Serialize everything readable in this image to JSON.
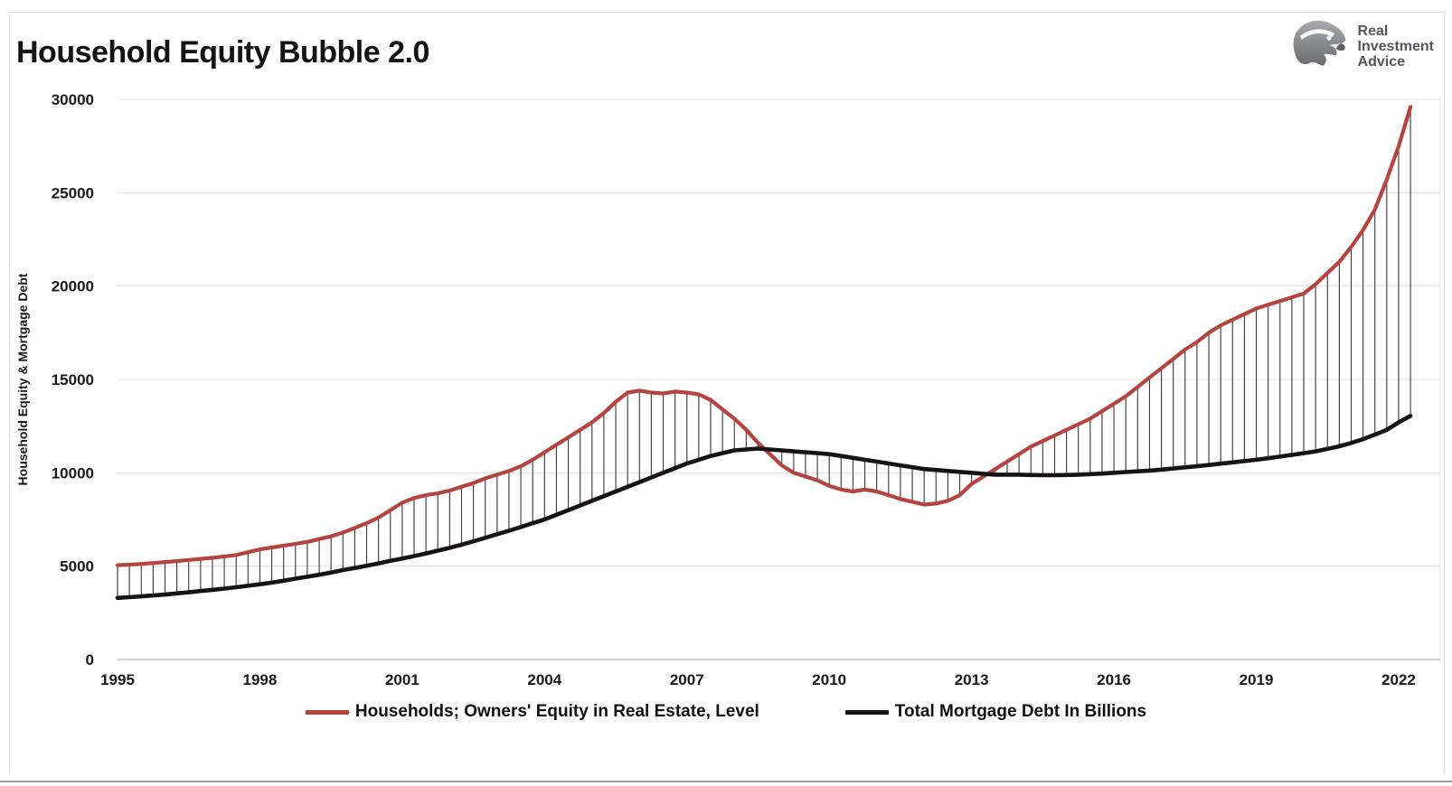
{
  "header": {
    "title": "Household Equity Bubble 2.0"
  },
  "logo": {
    "line1": "Real",
    "line2": "Investment",
    "line3": "Advice"
  },
  "chart_data": {
    "type": "line",
    "title": "Household Equity Bubble 2.0",
    "xlabel": "",
    "ylabel": "Household Equity & Mortgage Debt",
    "ylim": [
      0,
      30000
    ],
    "y_ticks": [
      0,
      5000,
      10000,
      15000,
      20000,
      25000,
      30000
    ],
    "x_ticks": [
      1995,
      1998,
      2001,
      2004,
      2007,
      2010,
      2013,
      2016,
      2019,
      2022
    ],
    "x_period": "quarterly",
    "x_range": [
      "1995Q1",
      "2022Q2"
    ],
    "grid": "horizontal-light",
    "legend_position": "bottom-center",
    "connector_style": "vertical high-low line at every quarter between the two series",
    "colors": {
      "equity_line": "#b54441",
      "mortgage_line": "#141414",
      "highlow_line": "#4a3b3b",
      "gridline": "#e5e5e5",
      "baseline": "#c2c2c2"
    },
    "series": [
      {
        "name": "Households; Owners' Equity in Real Estate, Level",
        "color": "#b54441",
        "values": [
          5050,
          5080,
          5120,
          5170,
          5220,
          5270,
          5330,
          5390,
          5450,
          5520,
          5600,
          5750,
          5900,
          6000,
          6100,
          6200,
          6300,
          6450,
          6600,
          6800,
          7050,
          7300,
          7600,
          8000,
          8400,
          8650,
          8800,
          8900,
          9050,
          9250,
          9450,
          9700,
          9900,
          10100,
          10350,
          10700,
          11100,
          11500,
          11900,
          12300,
          12700,
          13200,
          13800,
          14300,
          14400,
          14300,
          14250,
          14350,
          14300,
          14200,
          13900,
          13400,
          12900,
          12300,
          11600,
          11000,
          10400,
          10000,
          9800,
          9600,
          9300,
          9100,
          9000,
          9100,
          9000,
          8800,
          8600,
          8450,
          8300,
          8350,
          8500,
          8800,
          9400,
          9800,
          10200,
          10600,
          11000,
          11400,
          11700,
          12000,
          12300,
          12600,
          12900,
          13300,
          13700,
          14100,
          14600,
          15100,
          15600,
          16100,
          16600,
          17000,
          17500,
          17900,
          18200,
          18500,
          18800,
          19000,
          19200,
          19400,
          19600,
          20100,
          20700,
          21300,
          22100,
          23000,
          24100,
          25700,
          27500,
          29600
        ]
      },
      {
        "name": "Total Mortgage Debt In Billions",
        "color": "#141414",
        "values": [
          3300,
          3340,
          3380,
          3430,
          3480,
          3540,
          3600,
          3670,
          3730,
          3800,
          3870,
          3950,
          4030,
          4120,
          4220,
          4330,
          4430,
          4540,
          4660,
          4790,
          4900,
          5020,
          5150,
          5290,
          5410,
          5540,
          5680,
          5830,
          5980,
          6150,
          6330,
          6520,
          6710,
          6900,
          7100,
          7300,
          7500,
          7750,
          8000,
          8250,
          8500,
          8750,
          9000,
          9250,
          9500,
          9750,
          10000,
          10250,
          10500,
          10700,
          10900,
          11050,
          11200,
          11250,
          11300,
          11250,
          11200,
          11150,
          11100,
          11050,
          11000,
          10900,
          10800,
          10700,
          10600,
          10500,
          10400,
          10300,
          10200,
          10150,
          10100,
          10050,
          10000,
          9950,
          9900,
          9900,
          9900,
          9880,
          9870,
          9870,
          9880,
          9900,
          9930,
          9960,
          10000,
          10040,
          10080,
          10120,
          10170,
          10230,
          10290,
          10350,
          10420,
          10490,
          10560,
          10630,
          10700,
          10780,
          10870,
          10960,
          11050,
          11150,
          11280,
          11420,
          11600,
          11800,
          12050,
          12300,
          12700,
          13050
        ]
      }
    ]
  }
}
